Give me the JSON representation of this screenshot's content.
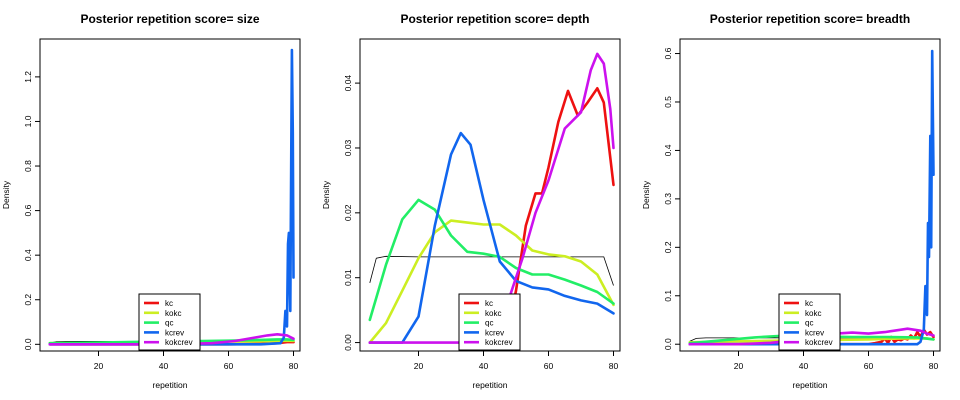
{
  "legend": {
    "entries": [
      {
        "name": "kc",
        "color": "#ee1111"
      },
      {
        "name": "kokc",
        "color": "#ccee22"
      },
      {
        "name": "qc",
        "color": "#22ee66"
      },
      {
        "name": "kcrev",
        "color": "#1166ee"
      },
      {
        "name": "kokcrev",
        "color": "#cc11ee"
      }
    ]
  },
  "chart_data": [
    {
      "type": "line",
      "title": "Posterior repetition  score= size",
      "xlabel": "repetition",
      "ylabel": "Density",
      "xlim": [
        2,
        82
      ],
      "ylim": [
        -0.03,
        1.37
      ],
      "xticks": [
        20,
        40,
        60,
        80
      ],
      "yticks": [
        0.0,
        0.2,
        0.4,
        0.6,
        0.8,
        1.0,
        1.2
      ],
      "ytick_labels": [
        "0.0",
        "0.2",
        "0.4",
        "0.6",
        "0.8",
        "1.0",
        "1.2"
      ],
      "legend_position": "bottom-center",
      "reference": {
        "x": [
          5,
          7,
          10,
          20,
          30,
          40,
          50,
          60,
          70,
          77,
          80
        ],
        "y": [
          0.006,
          0.012,
          0.013,
          0.013,
          0.013,
          0.013,
          0.013,
          0.013,
          0.013,
          0.013,
          0.009
        ]
      },
      "series": [
        {
          "name": "kc",
          "color": "#ee1111",
          "x": [
            5,
            20,
            40,
            60,
            70,
            75,
            78,
            80
          ],
          "y": [
            0,
            0,
            0,
            0,
            0.002,
            0.005,
            0.01,
            0.01
          ]
        },
        {
          "name": "kokc",
          "color": "#ccee22",
          "x": [
            5,
            20,
            40,
            60,
            70,
            75,
            78,
            80
          ],
          "y": [
            0.005,
            0.007,
            0.009,
            0.012,
            0.014,
            0.015,
            0.016,
            0.015
          ]
        },
        {
          "name": "qc",
          "color": "#22ee66",
          "x": [
            5,
            20,
            40,
            60,
            70,
            75,
            78,
            80
          ],
          "y": [
            0.005,
            0.008,
            0.012,
            0.016,
            0.02,
            0.022,
            0.022,
            0.02
          ]
        },
        {
          "name": "kcrev",
          "color": "#1166ee",
          "x": [
            5,
            40,
            70,
            76,
            77,
            77.5,
            78,
            78.3,
            78.6,
            79,
            79.2,
            79.5,
            79.8,
            80
          ],
          "y": [
            0,
            0,
            0,
            0.005,
            0.03,
            0.15,
            0.08,
            0.45,
            0.5,
            0.15,
            0.6,
            1.32,
            0.95,
            0.3
          ]
        },
        {
          "name": "kokcrev",
          "color": "#cc11ee",
          "x": [
            5,
            20,
            40,
            55,
            62,
            68,
            72,
            75,
            78,
            80
          ],
          "y": [
            0,
            0,
            0,
            0.005,
            0.015,
            0.03,
            0.04,
            0.045,
            0.04,
            0.025
          ]
        }
      ]
    },
    {
      "type": "line",
      "title": "Posterior repetition  score= depth",
      "xlabel": "repetition",
      "ylabel": "Density",
      "xlim": [
        2,
        82
      ],
      "ylim": [
        -0.0013,
        0.0468
      ],
      "xticks": [
        20,
        40,
        60,
        80
      ],
      "yticks": [
        0.0,
        0.01,
        0.02,
        0.03,
        0.04
      ],
      "ytick_labels": [
        "0.00",
        "0.01",
        "0.02",
        "0.03",
        "0.04"
      ],
      "legend_position": "bottom-center",
      "reference": {
        "x": [
          5,
          7,
          10,
          20,
          30,
          40,
          50,
          60,
          70,
          77,
          80
        ],
        "y": [
          0.0092,
          0.013,
          0.0133,
          0.0132,
          0.0132,
          0.0132,
          0.0132,
          0.0132,
          0.0132,
          0.0132,
          0.0088
        ]
      },
      "series": [
        {
          "name": "kc",
          "color": "#ee1111",
          "x": [
            47,
            50,
            53,
            56,
            58,
            60,
            63,
            66,
            69,
            72,
            75,
            77,
            80
          ],
          "y": [
            0.001,
            0.008,
            0.018,
            0.023,
            0.023,
            0.027,
            0.034,
            0.0388,
            0.035,
            0.037,
            0.0392,
            0.037,
            0.0243
          ]
        },
        {
          "name": "kokc",
          "color": "#ccee22",
          "x": [
            5,
            10,
            15,
            20,
            25,
            30,
            35,
            40,
            45,
            50,
            55,
            60,
            65,
            70,
            75,
            80
          ],
          "y": [
            0,
            0.003,
            0.008,
            0.013,
            0.017,
            0.0188,
            0.0185,
            0.0182,
            0.0182,
            0.0165,
            0.0142,
            0.0136,
            0.0133,
            0.0125,
            0.0105,
            0.0058
          ]
        },
        {
          "name": "qc",
          "color": "#22ee66",
          "x": [
            5,
            10,
            15,
            20,
            25,
            30,
            35,
            40,
            45,
            50,
            55,
            60,
            65,
            70,
            75,
            80
          ],
          "y": [
            0.0035,
            0.012,
            0.019,
            0.022,
            0.0205,
            0.0165,
            0.014,
            0.0137,
            0.0132,
            0.0115,
            0.0105,
            0.0105,
            0.0097,
            0.0088,
            0.0078,
            0.006
          ]
        },
        {
          "name": "kcrev",
          "color": "#1166ee",
          "x": [
            5,
            15,
            20,
            25,
            30,
            33,
            36,
            40,
            45,
            50,
            55,
            60,
            65,
            70,
            75,
            80
          ],
          "y": [
            0,
            0,
            0.004,
            0.018,
            0.029,
            0.0323,
            0.0305,
            0.022,
            0.0125,
            0.0095,
            0.0085,
            0.0082,
            0.0072,
            0.0065,
            0.006,
            0.0045
          ]
        },
        {
          "name": "kokcrev",
          "color": "#cc11ee",
          "x": [
            5,
            20,
            40,
            45,
            48,
            52,
            56,
            60,
            65,
            70,
            73,
            75,
            77,
            79,
            80
          ],
          "y": [
            0,
            0,
            0,
            0.001,
            0.007,
            0.013,
            0.02,
            0.025,
            0.033,
            0.0355,
            0.042,
            0.0445,
            0.043,
            0.036,
            0.03
          ]
        }
      ]
    },
    {
      "type": "line",
      "title": "Posterior repetition  score= breadth",
      "xlabel": "repetition",
      "ylabel": "Density",
      "xlim": [
        2,
        82
      ],
      "ylim": [
        -0.014,
        0.63
      ],
      "xticks": [
        20,
        40,
        60,
        80
      ],
      "yticks": [
        0.0,
        0.1,
        0.2,
        0.3,
        0.4,
        0.5,
        0.6
      ],
      "ytick_labels": [
        "0.0",
        "0.1",
        "0.2",
        "0.3",
        "0.4",
        "0.5",
        "0.6"
      ],
      "legend_position": "bottom-center",
      "reference": {
        "x": [
          5,
          7,
          10,
          20,
          30,
          40,
          50,
          60,
          70,
          77,
          80
        ],
        "y": [
          0.006,
          0.012,
          0.013,
          0.013,
          0.013,
          0.013,
          0.013,
          0.013,
          0.013,
          0.013,
          0.009
        ]
      },
      "series": [
        {
          "name": "kc",
          "color": "#ee1111",
          "x": [
            5,
            60,
            62,
            64,
            65,
            66,
            67,
            68,
            69,
            70,
            71,
            72,
            73,
            74,
            75,
            76,
            77,
            78,
            79,
            80
          ],
          "y": [
            0,
            0,
            0.002,
            0.005,
            0.012,
            0.003,
            0.015,
            0.005,
            0.01,
            0.008,
            0.012,
            0.01,
            0.018,
            0.012,
            0.025,
            0.015,
            0.03,
            0.02,
            0.025,
            0.015
          ]
        },
        {
          "name": "kokc",
          "color": "#ccee22",
          "x": [
            5,
            20,
            40,
            60,
            70,
            75,
            78,
            80
          ],
          "y": [
            0.004,
            0.006,
            0.008,
            0.01,
            0.012,
            0.012,
            0.012,
            0.01
          ]
        },
        {
          "name": "qc",
          "color": "#22ee66",
          "x": [
            5,
            15,
            25,
            35,
            45,
            55,
            65,
            75,
            80
          ],
          "y": [
            0.002,
            0.008,
            0.014,
            0.018,
            0.016,
            0.015,
            0.015,
            0.014,
            0.01
          ]
        },
        {
          "name": "kcrev",
          "color": "#1166ee",
          "x": [
            5,
            40,
            70,
            75,
            76,
            77,
            77.5,
            78,
            78.3,
            78.6,
            79,
            79.3,
            79.6,
            80
          ],
          "y": [
            0,
            0,
            0,
            0,
            0.005,
            0.03,
            0.12,
            0.06,
            0.25,
            0.18,
            0.43,
            0.2,
            0.605,
            0.35
          ]
        },
        {
          "name": "kokcrev",
          "color": "#cc11ee",
          "x": [
            5,
            20,
            30,
            40,
            45,
            50,
            55,
            60,
            65,
            70,
            72,
            74,
            76,
            78,
            80
          ],
          "y": [
            0,
            0,
            0.003,
            0.01,
            0.018,
            0.022,
            0.024,
            0.022,
            0.025,
            0.03,
            0.032,
            0.03,
            0.028,
            0.022,
            0.018
          ]
        }
      ]
    }
  ]
}
